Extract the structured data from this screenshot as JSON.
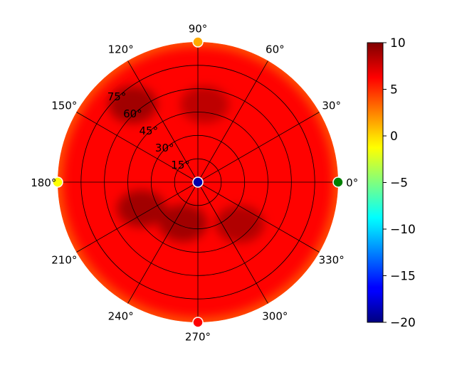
{
  "chart_data": {
    "type": "heatmap",
    "projection": "polar",
    "angular_ticks": [
      0,
      30,
      60,
      90,
      120,
      150,
      180,
      210,
      240,
      270,
      300,
      330
    ],
    "angular_tick_labels": [
      "0°",
      "30°",
      "60°",
      "90°",
      "120°",
      "150°",
      "180°",
      "210°",
      "240°",
      "270°",
      "300°",
      "330°"
    ],
    "radial_ticks": [
      15,
      30,
      45,
      60,
      75
    ],
    "radial_tick_labels": [
      "15°",
      "30°",
      "45°",
      "60°",
      "75°"
    ],
    "radial_range": [
      0,
      90
    ],
    "grid": true,
    "colormap": "jet",
    "colorbar": {
      "range": [
        -20,
        10
      ],
      "ticks": [
        10,
        5,
        0,
        -5,
        -10,
        -15,
        -20
      ],
      "tick_labels": [
        "10",
        "5",
        "0",
        "−5",
        "−10",
        "−15",
        "−20"
      ],
      "placement": "right"
    },
    "value_field": {
      "base": 6.2,
      "edge_low": 3.5,
      "dark_patches": [
        {
          "theta": 130,
          "r": 65,
          "value": 9.5
        },
        {
          "theta": 205,
          "r": 40,
          "value": 9.5
        },
        {
          "theta": 250,
          "r": 28,
          "value": 9.5
        },
        {
          "theta": 315,
          "r": 38,
          "value": 9.0
        },
        {
          "theta": 85,
          "r": 50,
          "value": 8.5
        }
      ]
    },
    "markers": [
      {
        "theta": 0,
        "r": 90,
        "value": -7,
        "color": "#008000"
      },
      {
        "theta": 90,
        "r": 90,
        "value": 3,
        "color": "#ffaa00"
      },
      {
        "theta": 180,
        "r": 90,
        "value": 0.5,
        "color": "#ffff00"
      },
      {
        "theta": 270,
        "r": 90,
        "value": 8,
        "color": "#ff0000"
      },
      {
        "theta": 0,
        "r": 0,
        "value": -19,
        "color": "#0000aa"
      }
    ]
  }
}
